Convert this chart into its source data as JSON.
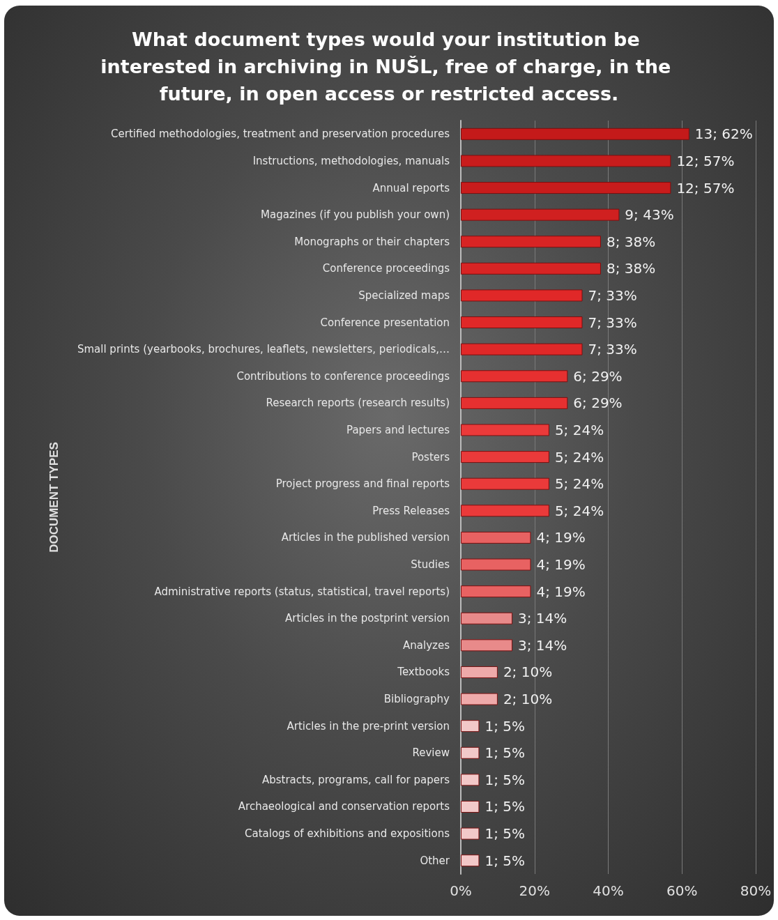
{
  "chart_data": {
    "type": "bar",
    "orientation": "horizontal",
    "title": "What document types would your institution be interested in archiving in NUŠL, free of charge, in the future, in open access or restricted access.",
    "ylabel": "DOCUMENT TYPES",
    "categories": [
      "Certified methodologies, treatment and preservation procedures",
      "Instructions, methodologies, manuals",
      "Annual reports",
      "Magazines (if you publish your own)",
      "Monographs or their chapters",
      "Conference proceedings",
      "Specialized maps",
      "Conference presentation",
      "Small prints (yearbooks, brochures, leaflets, newsletters, periodicals,…",
      "Contributions to conference proceedings",
      "Research reports (research results)",
      "Papers and lectures",
      "Posters",
      "Project progress and final reports",
      "Press Releases",
      "Articles in the published version",
      "Studies",
      "Administrative reports (status, statistical, travel reports)",
      "Articles in the postprint version",
      "Analyzes",
      "Textbooks",
      "Bibliography",
      "Articles in the pre-print version",
      "Review",
      "Abstracts, programs, call for papers",
      "Archaeological and conservation reports",
      "Catalogs of exhibitions and expositions",
      "Other"
    ],
    "values": [
      62,
      57,
      57,
      43,
      38,
      38,
      33,
      33,
      33,
      29,
      29,
      24,
      24,
      24,
      24,
      19,
      19,
      19,
      14,
      14,
      10,
      10,
      5,
      5,
      5,
      5,
      5,
      5
    ],
    "value_labels": [
      "13; 62%",
      "12; 57%",
      "12; 57%",
      "9; 43%",
      "8; 38%",
      "8; 38%",
      "7; 33%",
      "7; 33%",
      "7; 33%",
      "6; 29%",
      "6; 29%",
      "5; 24%",
      "5; 24%",
      "5; 24%",
      "5; 24%",
      "4; 19%",
      "4; 19%",
      "4; 19%",
      "3; 14%",
      "3; 14%",
      "2; 10%",
      "2; 10%",
      "1; 5%",
      "1; 5%",
      "1; 5%",
      "1; 5%",
      "1; 5%",
      "1; 5%"
    ],
    "colors": [
      "#c41a1a",
      "#c81c1c",
      "#c81c1c",
      "#d02020",
      "#d82424",
      "#d82424",
      "#e02828",
      "#e02828",
      "#e02828",
      "#e63030",
      "#e63030",
      "#ea3a3a",
      "#ea3a3a",
      "#ea3a3a",
      "#ea3a3a",
      "#e86262",
      "#e86262",
      "#e86262",
      "#e88a8a",
      "#e88a8a",
      "#eeaaaa",
      "#eeaaaa",
      "#f2c8c8",
      "#f2c8c8",
      "#f2c8c8",
      "#f2c8c8",
      "#f2c8c8",
      "#f2c8c8"
    ],
    "xlim": [
      0,
      80
    ],
    "xticks": [
      {
        "value": 0,
        "label": "0%"
      },
      {
        "value": 20,
        "label": "20%"
      },
      {
        "value": 40,
        "label": "40%"
      },
      {
        "value": 60,
        "label": "60%"
      },
      {
        "value": 80,
        "label": "80%"
      }
    ],
    "grid": "x"
  }
}
